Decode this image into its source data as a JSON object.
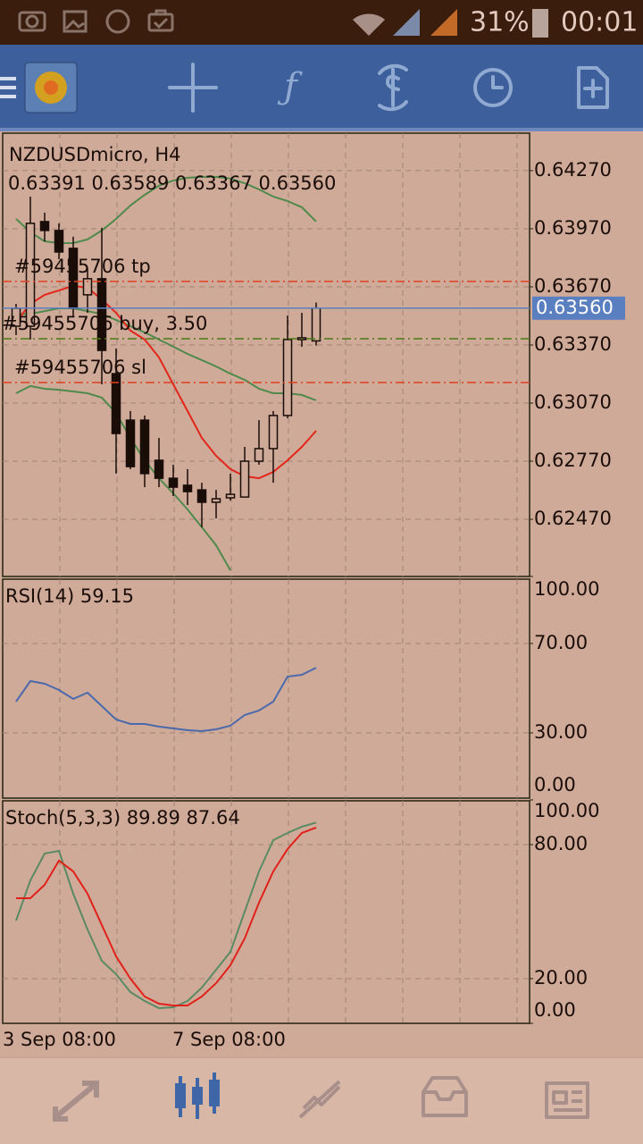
{
  "status_bar": {
    "battery": "31%",
    "time": "00:01"
  },
  "time_axis": [
    "3 Sep 08:00",
    "7 Sep 08:00"
  ],
  "chart_data": [
    {
      "type": "candlestick",
      "title": "NZDUSDmicro, H4",
      "subtitle": "0.63391 0.63589 0.63367 0.63560",
      "open": [
        0.63467,
        0.63467,
        0.64007,
        0.63961,
        0.63869,
        0.63629,
        0.63712,
        0.63222,
        0.62982,
        0.62982,
        0.62775,
        0.62682,
        0.62646,
        0.62622,
        0.62558,
        0.62581,
        0.62585,
        0.6277,
        0.62835,
        0.63006,
        0.63398,
        0.63391
      ],
      "high": [
        0.63582,
        0.64136,
        0.64053,
        0.63998,
        0.63929,
        0.63767,
        0.63975,
        0.63352,
        0.63029,
        0.63006,
        0.6289,
        0.62752,
        0.62729,
        0.62659,
        0.62622,
        0.62706,
        0.62844,
        0.62982,
        0.63029,
        0.63522,
        0.63536,
        0.63589
      ],
      "low": [
        0.63421,
        0.63398,
        0.63905,
        0.63813,
        0.63513,
        0.63536,
        0.63167,
        0.62706,
        0.62729,
        0.62636,
        0.62636,
        0.6259,
        0.62544,
        0.62429,
        0.62475,
        0.62567,
        0.62585,
        0.62752,
        0.62659,
        0.62992,
        0.63361,
        0.63367
      ],
      "close": [
        0.63559,
        0.63998,
        0.63961,
        0.6385,
        0.63559,
        0.63712,
        0.63342,
        0.62913,
        0.62742,
        0.62706,
        0.62682,
        0.62636,
        0.62613,
        0.62558,
        0.62576,
        0.62599,
        0.6277,
        0.62835,
        0.63006,
        0.63398,
        0.63407,
        0.6356
      ],
      "series": [
        {
          "color": "#4f8a4c",
          "values": [
            0.64021,
            0.63952,
            0.63905,
            0.63896,
            0.63896,
            0.63915,
            0.63961,
            0.64021,
            0.6409,
            0.64145,
            0.64192,
            0.64219,
            0.64233,
            0.64238,
            0.64238,
            0.64229,
            0.64205,
            0.64173,
            0.64136,
            0.64113,
            0.64081,
            0.64007
          ]
        },
        {
          "color": "#4f8a4c",
          "values": [
            0.6353,
            0.6353,
            0.63545,
            0.63559,
            0.63559,
            0.63545,
            0.6353,
            0.63499,
            0.63467,
            0.63435,
            0.63398,
            0.63361,
            0.63324,
            0.63292,
            0.63259,
            0.63222,
            0.6319,
            0.63144,
            0.63121,
            0.63121,
            0.63112,
            0.63084
          ]
        },
        {
          "color": "#4f8a4c",
          "values": [
            0.63121,
            0.63158,
            0.63144,
            0.63139,
            0.6313,
            0.63121,
            0.63098,
            0.63019,
            0.6289,
            0.62775,
            0.62682,
            0.62604,
            0.62521,
            0.62429,
            0.62336,
            0.62207,
            null,
            null,
            null,
            null,
            null,
            null
          ]
        },
        {
          "color": "#e2261a",
          "values": [
            0.6349,
            0.63582,
            0.63629,
            0.63652,
            0.63675,
            0.63665,
            0.63605,
            0.63536,
            0.63444,
            0.63398,
            0.63306,
            0.63167,
            0.63029,
            0.6289,
            0.62798,
            0.62729,
            0.62692,
            0.62682,
            0.62715,
            0.62775,
            0.62844,
            0.62927
          ]
        }
      ],
      "levels": [
        {
          "label": "#59455706 tp",
          "value": 0.63698,
          "color": "#e0401e"
        },
        {
          "label": "#59455706 buy, 3.50",
          "value": 0.63402,
          "color": "#4a7a10"
        },
        {
          "label": "#59455706 sl",
          "value": 0.63176,
          "color": "#e0401e"
        }
      ],
      "current_price": {
        "value": 0.6356,
        "label": "0.63560",
        "color": "#5a7fc0"
      },
      "ylim": [
        0.62175,
        0.64468
      ],
      "yticks": [
        {
          "value": 0.6427,
          "label": "0.64270"
        },
        {
          "value": 0.6397,
          "label": "0.63970"
        },
        {
          "value": 0.6367,
          "label": "0.63670"
        },
        {
          "value": 0.6337,
          "label": "0.63370"
        },
        {
          "value": 0.6307,
          "label": "0.63070"
        },
        {
          "value": 0.6277,
          "label": "0.62770"
        },
        {
          "value": 0.6247,
          "label": "0.62470"
        }
      ],
      "grid": true
    },
    {
      "type": "line",
      "title": "RSI(14) 59.15",
      "series": [
        {
          "color": "#4a6aac",
          "values": [
            44,
            53.2,
            52,
            49.2,
            45.2,
            48,
            42,
            36,
            34,
            34,
            32.8,
            32,
            31.2,
            30.8,
            31.6,
            33.2,
            38,
            40,
            44,
            55.2,
            56,
            59.15
          ]
        }
      ],
      "ylim": [
        0,
        100
      ],
      "yticks": [
        {
          "value": 100,
          "label": "100.00"
        },
        {
          "value": 70,
          "label": "70.00"
        },
        {
          "value": 30,
          "label": "30.00"
        },
        {
          "value": 0,
          "label": "0.00"
        }
      ],
      "grid": true
    },
    {
      "type": "line",
      "title": "Stoch(5,3,3) 89.89 87.64",
      "series": [
        {
          "color": "#5a8a64",
          "values": [
            46,
            64,
            76,
            77.2,
            58,
            42,
            28,
            22,
            14,
            10,
            6.8,
            7.2,
            10,
            16,
            24,
            32,
            50,
            68,
            82,
            85.2,
            88,
            89.89
          ]
        },
        {
          "color": "#e2201a",
          "values": [
            56,
            56,
            62,
            72.8,
            68,
            58,
            44,
            30,
            20,
            12,
            8.8,
            8,
            8,
            12,
            18,
            26,
            38,
            54,
            68,
            78,
            85.2,
            87.64
          ]
        }
      ],
      "ylim": [
        0,
        100
      ],
      "yticks": [
        {
          "value": 100,
          "label": "100.00"
        },
        {
          "value": 80,
          "label": "80.00"
        },
        {
          "value": 20,
          "label": "20.00"
        },
        {
          "value": 0,
          "label": "0.00"
        }
      ],
      "grid": true
    }
  ]
}
